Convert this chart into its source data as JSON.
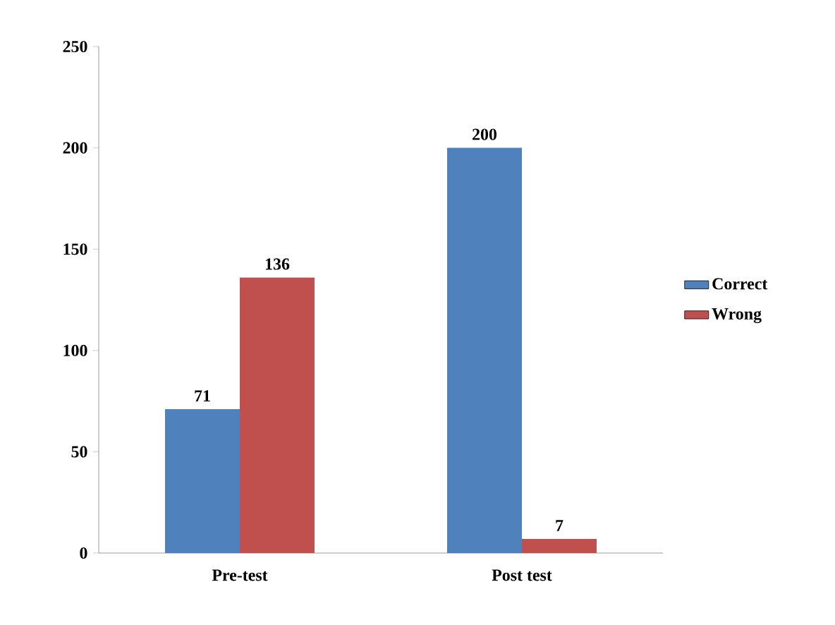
{
  "chart_data": {
    "type": "bar",
    "categories": [
      "Pre-test",
      "Post test"
    ],
    "series": [
      {
        "name": "Correct",
        "color": "#4f81bd",
        "values": [
          71,
          200
        ]
      },
      {
        "name": "Wrong",
        "color": "#c0504d",
        "values": [
          136,
          7
        ]
      }
    ],
    "ylim": [
      0,
      250
    ],
    "yticks": [
      0,
      50,
      100,
      150,
      200,
      250
    ],
    "data_labels": true,
    "legend": "right",
    "grid": false
  }
}
